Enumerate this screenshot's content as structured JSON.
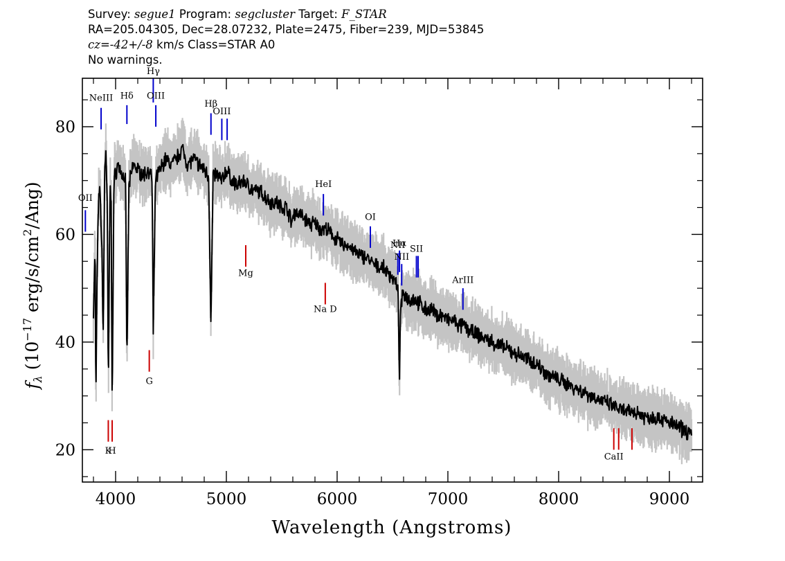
{
  "header": {
    "survey_label": "Survey: ",
    "survey": "segue1",
    "program_label": " Program: ",
    "program": "segcluster",
    "target_label": " Target: ",
    "target": "F_STAR",
    "line2": "RA=205.04305, Dec=28.07232, Plate=2475, Fiber=239, MJD=53845",
    "cz_prefix": "cz",
    "cz_eq": "=",
    "cz_value": "-42+/-8",
    "cz_suffix": " km/s Class=STAR A0",
    "line4": "No warnings."
  },
  "chart_data": {
    "type": "line",
    "xlabel": "Wavelength (Angstroms)",
    "ylabel": "f_λ (10^-17 erg/s/cm^2/Ang)",
    "ylabel_parts": {
      "f": "f",
      "sub": "λ",
      "mid": " (10",
      "exp1": "−17",
      "rest1": " erg/s/cm",
      "exp2": "2",
      "rest2": "/Ang)"
    },
    "xlim": [
      3700,
      9300
    ],
    "ylim": [
      14,
      89
    ],
    "xticks": [
      4000,
      5000,
      6000,
      7000,
      8000,
      9000
    ],
    "yticks": [
      20,
      40,
      60,
      80
    ],
    "spectrum_points": [
      [
        3800,
        45
      ],
      [
        3815,
        58
      ],
      [
        3822,
        27
      ],
      [
        3830,
        48
      ],
      [
        3845,
        66
      ],
      [
        3860,
        68
      ],
      [
        3875,
        58
      ],
      [
        3889,
        41
      ],
      [
        3900,
        70
      ],
      [
        3912,
        76
      ],
      [
        3925,
        66
      ],
      [
        3934,
        30
      ],
      [
        3950,
        70
      ],
      [
        3960,
        65
      ],
      [
        3969,
        28
      ],
      [
        3985,
        70
      ],
      [
        4020,
        73
      ],
      [
        4060,
        71
      ],
      [
        4090,
        70
      ],
      [
        4102,
        35
      ],
      [
        4120,
        69
      ],
      [
        4160,
        73
      ],
      [
        4200,
        72
      ],
      [
        4250,
        71
      ],
      [
        4300,
        72
      ],
      [
        4330,
        70
      ],
      [
        4340,
        41
      ],
      [
        4360,
        70
      ],
      [
        4400,
        72
      ],
      [
        4450,
        74
      ],
      [
        4500,
        73
      ],
      [
        4550,
        74
      ],
      [
        4600,
        76
      ],
      [
        4650,
        73
      ],
      [
        4700,
        74
      ],
      [
        4750,
        73
      ],
      [
        4800,
        72
      ],
      [
        4840,
        71
      ],
      [
        4861,
        43
      ],
      [
        4880,
        71
      ],
      [
        4920,
        71
      ],
      [
        4960,
        70
      ],
      [
        5000,
        72
      ],
      [
        5050,
        70
      ],
      [
        5100,
        69
      ],
      [
        5150,
        70
      ],
      [
        5200,
        69
      ],
      [
        5250,
        68
      ],
      [
        5300,
        68
      ],
      [
        5350,
        67
      ],
      [
        5400,
        66
      ],
      [
        5450,
        66
      ],
      [
        5500,
        65
      ],
      [
        5550,
        65
      ],
      [
        5590,
        62
      ],
      [
        5610,
        64
      ],
      [
        5650,
        64
      ],
      [
        5700,
        63
      ],
      [
        5750,
        62
      ],
      [
        5800,
        62
      ],
      [
        5850,
        61
      ],
      [
        5900,
        61
      ],
      [
        5950,
        60
      ],
      [
        6000,
        59
      ],
      [
        6050,
        58
      ],
      [
        6100,
        58
      ],
      [
        6150,
        57
      ],
      [
        6200,
        56
      ],
      [
        6250,
        56
      ],
      [
        6300,
        55
      ],
      [
        6350,
        54
      ],
      [
        6400,
        54
      ],
      [
        6450,
        53
      ],
      [
        6500,
        52
      ],
      [
        6530,
        51
      ],
      [
        6550,
        49
      ],
      [
        6563,
        33.5
      ],
      [
        6575,
        47
      ],
      [
        6600,
        49
      ],
      [
        6650,
        48
      ],
      [
        6700,
        48
      ],
      [
        6750,
        47
      ],
      [
        6800,
        46
      ],
      [
        6850,
        46
      ],
      [
        6900,
        45
      ],
      [
        6950,
        45
      ],
      [
        7000,
        44
      ],
      [
        7050,
        44
      ],
      [
        7100,
        43
      ],
      [
        7150,
        43
      ],
      [
        7200,
        42
      ],
      [
        7300,
        41
      ],
      [
        7400,
        40
      ],
      [
        7500,
        39
      ],
      [
        7600,
        38
      ],
      [
        7700,
        37
      ],
      [
        7800,
        36
      ],
      [
        7900,
        34
      ],
      [
        8000,
        33
      ],
      [
        8100,
        32
      ],
      [
        8200,
        31
      ],
      [
        8300,
        30
      ],
      [
        8400,
        29
      ],
      [
        8500,
        28
      ],
      [
        8600,
        27
      ],
      [
        8700,
        27
      ],
      [
        8800,
        26
      ],
      [
        8900,
        26
      ],
      [
        9000,
        25
      ],
      [
        9100,
        24
      ],
      [
        9200,
        23
      ]
    ],
    "line_markers": [
      {
        "label": "OII",
        "x": 3727,
        "y0": 60.5,
        "y1": 64.5,
        "color": "#0000cc",
        "ly": 66.2
      },
      {
        "label": "NeIII",
        "x": 3869,
        "y0": 79.5,
        "y1": 83.5,
        "color": "#0000cc",
        "ly": 84.8
      },
      {
        "label": "Hδ",
        "x": 4102,
        "y0": 80.5,
        "y1": 84,
        "color": "#0000cc",
        "ly": 85.2
      },
      {
        "label": "Hγ",
        "x": 4340,
        "y0": 84.5,
        "y1": 89,
        "color": "#0000cc",
        "ly": 89.8
      },
      {
        "label": "OIII",
        "x": 4363,
        "y0": 80,
        "y1": 84,
        "color": "#0000cc",
        "ly": 85.2
      },
      {
        "label": "Hβ",
        "x": 4861,
        "y0": 78.5,
        "y1": 82.5,
        "color": "#0000cc",
        "ly": 83.7
      },
      {
        "label": "OIII",
        "x": 4959,
        "y0": 77.5,
        "y1": 81.5,
        "color": "#0000cc",
        "ly": 82.3
      },
      {
        "label": "",
        "x": 5007,
        "y0": 77.5,
        "y1": 81.5,
        "color": "#0000cc",
        "ly": 0
      },
      {
        "label": "Mg",
        "x": 5175,
        "y0": 54,
        "y1": 58,
        "color": "#cc0000",
        "ly": 52.3
      },
      {
        "label": "HeI",
        "x": 5876,
        "y0": 63.5,
        "y1": 67.5,
        "color": "#0000cc",
        "ly": 68.8
      },
      {
        "label": "Na D",
        "x": 5893,
        "y0": 47,
        "y1": 51,
        "color": "#cc0000",
        "ly": 45.6
      },
      {
        "label": "OI",
        "x": 6300,
        "y0": 57.5,
        "y1": 61.5,
        "color": "#0000cc",
        "ly": 62.7
      },
      {
        "label": "NII",
        "x": 6548,
        "y0": 52.5,
        "y1": 56.5,
        "color": "#0000cc",
        "ly": 57.5
      },
      {
        "label": "Hα",
        "x": 6563,
        "y0": 53,
        "y1": 57,
        "color": "#0000cc",
        "ly": 57.8
      },
      {
        "label": "NII",
        "x": 6583,
        "y0": 50.5,
        "y1": 54.5,
        "color": "#0000cc",
        "ly": 55.3
      },
      {
        "label": "SII",
        "x": 6716,
        "y0": 52,
        "y1": 56,
        "color": "#0000cc",
        "ly": 56.8
      },
      {
        "label": "",
        "x": 6731,
        "y0": 52,
        "y1": 56,
        "color": "#0000cc",
        "ly": 0
      },
      {
        "label": "ArIII",
        "x": 7136,
        "y0": 46,
        "y1": 50,
        "color": "#0000cc",
        "ly": 51
      },
      {
        "label": "G",
        "x": 4304,
        "y0": 34.5,
        "y1": 38.5,
        "color": "#cc0000",
        "ly": 32.2
      },
      {
        "label": "K",
        "x": 3934,
        "y0": 21.5,
        "y1": 25.5,
        "color": "#cc0000",
        "ly": 19.3
      },
      {
        "label": "H",
        "x": 3969,
        "y0": 21.5,
        "y1": 25.5,
        "color": "#cc0000",
        "ly": 19.3
      },
      {
        "label": "CaII",
        "x": 8498,
        "y0": 20,
        "y1": 24,
        "color": "#cc0000",
        "ly": 18.2
      },
      {
        "label": "",
        "x": 8542,
        "y0": 20,
        "y1": 24,
        "color": "#cc0000",
        "ly": 0
      },
      {
        "label": "",
        "x": 8662,
        "y0": 20,
        "y1": 24,
        "color": "#cc0000",
        "ly": 0
      }
    ]
  }
}
